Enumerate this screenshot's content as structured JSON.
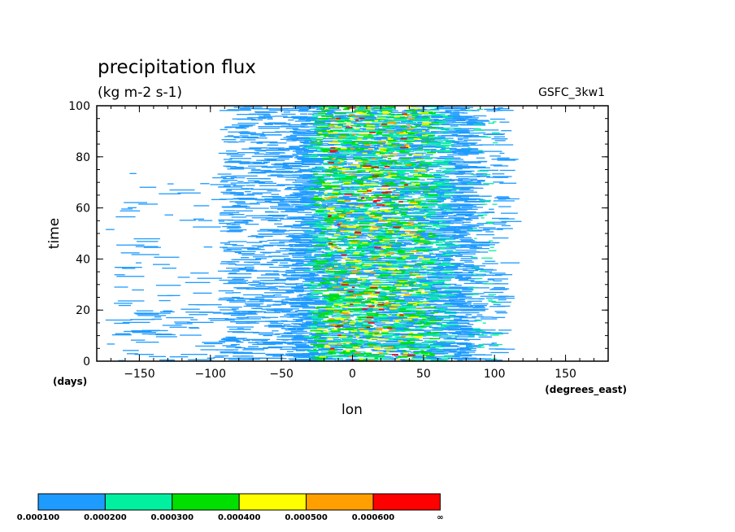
{
  "chart_data": {
    "type": "heatmap",
    "title": "precipitation flux",
    "subtitle": "(kg m-2 s-1)",
    "model": "GSFC_3kw1",
    "xlabel": "lon",
    "ylabel": "time",
    "xunits": "(degrees_east)",
    "yunits": "(days)",
    "xlim": [
      -180,
      180
    ],
    "ylim": [
      0,
      100
    ],
    "xticks": [
      -150,
      -100,
      -50,
      0,
      50,
      100,
      150
    ],
    "yticks": [
      0,
      20,
      40,
      60,
      80,
      100
    ],
    "x_tick_labels": [
      "−150",
      "−100",
      "−50",
      "0",
      "50",
      "100",
      "150"
    ],
    "y_tick_labels": [
      "0",
      "20",
      "40",
      "60",
      "80",
      "100"
    ],
    "grid": false,
    "colorbar": {
      "placement": "bottom",
      "levels": [
        "0.000100",
        "0.000200",
        "0.000300",
        "0.000400",
        "0.000500",
        "0.000600",
        "∞"
      ],
      "colors": [
        "#1e9bff",
        "#00f0a0",
        "#00e000",
        "#ffff00",
        "#ffa000",
        "#ff0000"
      ]
    },
    "description_of_field": "rain bands concentrated between about -60 and 100 degrees east; scattered weak bands from -180 to -60 lon; peak intensities near 0 to 50 degrees east"
  }
}
